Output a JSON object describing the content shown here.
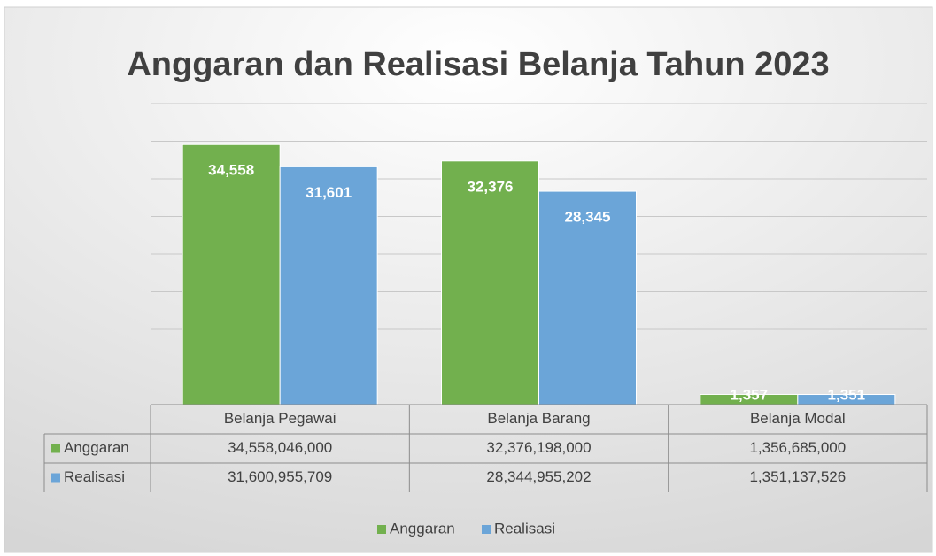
{
  "chart_data": {
    "type": "bar",
    "title": "Anggaran dan Realisasi Belanja Tahun 2023",
    "categories": [
      "Belanja Pegawai",
      "Belanja Barang",
      "Belanja Modal"
    ],
    "series": [
      {
        "name": "Anggaran",
        "color": "#72b04e",
        "values": [
          34558046000,
          32376198000,
          1356685000
        ],
        "value_labels": [
          "34,558",
          "32,376",
          "1,357"
        ],
        "table_values": [
          "34,558,046,000",
          "32,376,198,000",
          "1,356,685,000"
        ]
      },
      {
        "name": "Realisasi",
        "color": "#6ba5d8",
        "values": [
          31600955709,
          28344955202,
          1351137526
        ],
        "value_labels": [
          "31,601",
          "28,345",
          "1,351"
        ],
        "table_values": [
          "31,600,955,709",
          "28,344,955,202",
          "1,351,137,526"
        ]
      }
    ],
    "ylim": [
      0,
      40000000000
    ],
    "yticks": [
      0,
      5000000000,
      10000000000,
      15000000000,
      20000000000,
      25000000000,
      30000000000,
      35000000000,
      40000000000
    ],
    "grid": true,
    "legend": "bottom"
  }
}
